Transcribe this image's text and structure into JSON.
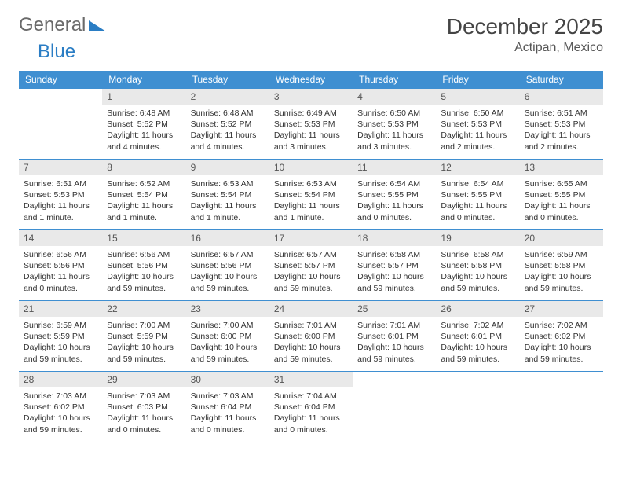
{
  "logo": {
    "part1": "General",
    "part2": "Blue"
  },
  "title": "December 2025",
  "location": "Actipan, Mexico",
  "colors": {
    "header_bg": "#3f8fd1",
    "header_text": "#ffffff",
    "daynum_bg": "#e9e9e9",
    "border": "#3f8fd1",
    "logo_gray": "#6a6a6a",
    "logo_blue": "#2a7dc4"
  },
  "typography": {
    "title_fontsize": 28,
    "location_fontsize": 16,
    "dayheader_fontsize": 12,
    "body_fontsize": 10.5
  },
  "day_headers": [
    "Sunday",
    "Monday",
    "Tuesday",
    "Wednesday",
    "Thursday",
    "Friday",
    "Saturday"
  ],
  "weeks": [
    [
      {
        "num": "",
        "text": ""
      },
      {
        "num": "1",
        "text": "Sunrise: 6:48 AM\nSunset: 5:52 PM\nDaylight: 11 hours and 4 minutes."
      },
      {
        "num": "2",
        "text": "Sunrise: 6:48 AM\nSunset: 5:52 PM\nDaylight: 11 hours and 4 minutes."
      },
      {
        "num": "3",
        "text": "Sunrise: 6:49 AM\nSunset: 5:53 PM\nDaylight: 11 hours and 3 minutes."
      },
      {
        "num": "4",
        "text": "Sunrise: 6:50 AM\nSunset: 5:53 PM\nDaylight: 11 hours and 3 minutes."
      },
      {
        "num": "5",
        "text": "Sunrise: 6:50 AM\nSunset: 5:53 PM\nDaylight: 11 hours and 2 minutes."
      },
      {
        "num": "6",
        "text": "Sunrise: 6:51 AM\nSunset: 5:53 PM\nDaylight: 11 hours and 2 minutes."
      }
    ],
    [
      {
        "num": "7",
        "text": "Sunrise: 6:51 AM\nSunset: 5:53 PM\nDaylight: 11 hours and 1 minute."
      },
      {
        "num": "8",
        "text": "Sunrise: 6:52 AM\nSunset: 5:54 PM\nDaylight: 11 hours and 1 minute."
      },
      {
        "num": "9",
        "text": "Sunrise: 6:53 AM\nSunset: 5:54 PM\nDaylight: 11 hours and 1 minute."
      },
      {
        "num": "10",
        "text": "Sunrise: 6:53 AM\nSunset: 5:54 PM\nDaylight: 11 hours and 1 minute."
      },
      {
        "num": "11",
        "text": "Sunrise: 6:54 AM\nSunset: 5:55 PM\nDaylight: 11 hours and 0 minutes."
      },
      {
        "num": "12",
        "text": "Sunrise: 6:54 AM\nSunset: 5:55 PM\nDaylight: 11 hours and 0 minutes."
      },
      {
        "num": "13",
        "text": "Sunrise: 6:55 AM\nSunset: 5:55 PM\nDaylight: 11 hours and 0 minutes."
      }
    ],
    [
      {
        "num": "14",
        "text": "Sunrise: 6:56 AM\nSunset: 5:56 PM\nDaylight: 11 hours and 0 minutes."
      },
      {
        "num": "15",
        "text": "Sunrise: 6:56 AM\nSunset: 5:56 PM\nDaylight: 10 hours and 59 minutes."
      },
      {
        "num": "16",
        "text": "Sunrise: 6:57 AM\nSunset: 5:56 PM\nDaylight: 10 hours and 59 minutes."
      },
      {
        "num": "17",
        "text": "Sunrise: 6:57 AM\nSunset: 5:57 PM\nDaylight: 10 hours and 59 minutes."
      },
      {
        "num": "18",
        "text": "Sunrise: 6:58 AM\nSunset: 5:57 PM\nDaylight: 10 hours and 59 minutes."
      },
      {
        "num": "19",
        "text": "Sunrise: 6:58 AM\nSunset: 5:58 PM\nDaylight: 10 hours and 59 minutes."
      },
      {
        "num": "20",
        "text": "Sunrise: 6:59 AM\nSunset: 5:58 PM\nDaylight: 10 hours and 59 minutes."
      }
    ],
    [
      {
        "num": "21",
        "text": "Sunrise: 6:59 AM\nSunset: 5:59 PM\nDaylight: 10 hours and 59 minutes."
      },
      {
        "num": "22",
        "text": "Sunrise: 7:00 AM\nSunset: 5:59 PM\nDaylight: 10 hours and 59 minutes."
      },
      {
        "num": "23",
        "text": "Sunrise: 7:00 AM\nSunset: 6:00 PM\nDaylight: 10 hours and 59 minutes."
      },
      {
        "num": "24",
        "text": "Sunrise: 7:01 AM\nSunset: 6:00 PM\nDaylight: 10 hours and 59 minutes."
      },
      {
        "num": "25",
        "text": "Sunrise: 7:01 AM\nSunset: 6:01 PM\nDaylight: 10 hours and 59 minutes."
      },
      {
        "num": "26",
        "text": "Sunrise: 7:02 AM\nSunset: 6:01 PM\nDaylight: 10 hours and 59 minutes."
      },
      {
        "num": "27",
        "text": "Sunrise: 7:02 AM\nSunset: 6:02 PM\nDaylight: 10 hours and 59 minutes."
      }
    ],
    [
      {
        "num": "28",
        "text": "Sunrise: 7:03 AM\nSunset: 6:02 PM\nDaylight: 10 hours and 59 minutes."
      },
      {
        "num": "29",
        "text": "Sunrise: 7:03 AM\nSunset: 6:03 PM\nDaylight: 11 hours and 0 minutes."
      },
      {
        "num": "30",
        "text": "Sunrise: 7:03 AM\nSunset: 6:04 PM\nDaylight: 11 hours and 0 minutes."
      },
      {
        "num": "31",
        "text": "Sunrise: 7:04 AM\nSunset: 6:04 PM\nDaylight: 11 hours and 0 minutes."
      },
      {
        "num": "",
        "text": ""
      },
      {
        "num": "",
        "text": ""
      },
      {
        "num": "",
        "text": ""
      }
    ]
  ]
}
